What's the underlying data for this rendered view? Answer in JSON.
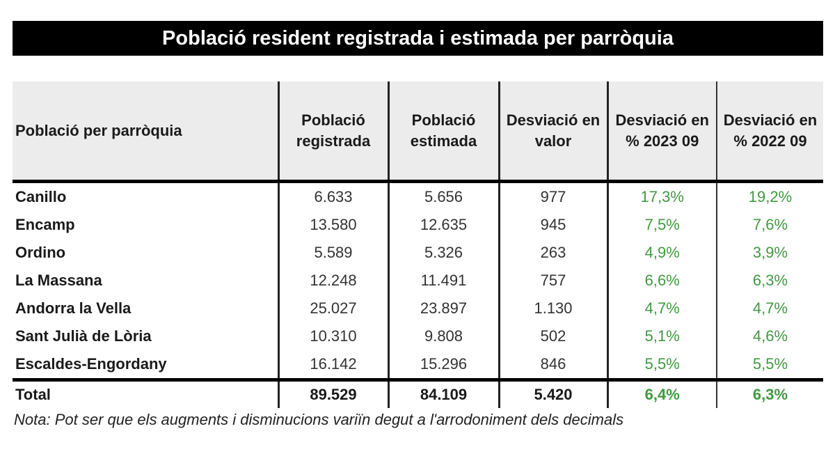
{
  "title": "Població resident registrada i estimada per parròquia",
  "colors": {
    "title_bg": "#000000",
    "header_bg": "#ececec",
    "percent_text": "#3f9a3f"
  },
  "table": {
    "headers": [
      "Població per parròquia",
      "Població registrada",
      "Població estimada",
      "Desviació en valor",
      "Desviació en % 2023 09",
      "Desviació en % 2022 09"
    ],
    "rows": [
      [
        "Canillo",
        "6.633",
        "5.656",
        "977",
        "17,3%",
        "19,2%"
      ],
      [
        "Encamp",
        "13.580",
        "12.635",
        "945",
        "7,5%",
        "7,6%"
      ],
      [
        "Ordino",
        "5.589",
        "5.326",
        "263",
        "4,9%",
        "3,9%"
      ],
      [
        "La Massana",
        "12.248",
        "11.491",
        "757",
        "6,6%",
        "6,3%"
      ],
      [
        "Andorra la Vella",
        "25.027",
        "23.897",
        "1.130",
        "4,7%",
        "4,7%"
      ],
      [
        "Sant Julià de Lòria",
        "10.310",
        "9.808",
        "502",
        "5,1%",
        "4,6%"
      ],
      [
        "Escaldes-Engordany",
        "16.142",
        "15.296",
        "846",
        "5,5%",
        "5,5%"
      ]
    ],
    "total": [
      "Total",
      "89.529",
      "84.109",
      "5.420",
      "6,4%",
      "6,3%"
    ]
  },
  "note": "Nota: Pot ser que els augments i disminucions variïn degut a l'arrodoniment dels decimals"
}
